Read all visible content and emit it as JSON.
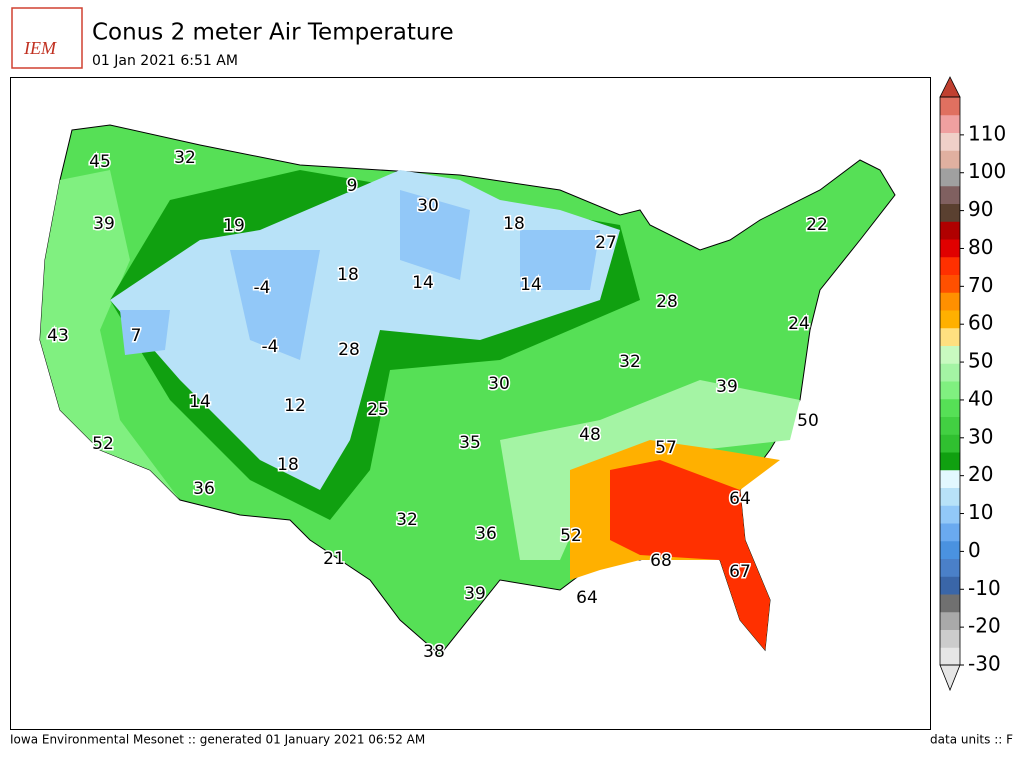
{
  "header": {
    "logo": "IEM",
    "title": "Conus 2 meter Air Temperature",
    "subtitle": "01 Jan 2021 6:51 AM"
  },
  "map": {
    "labels": [
      45,
      32,
      39,
      19,
      9,
      30,
      18,
      27,
      22,
      -4,
      18,
      14,
      14,
      28,
      24,
      43,
      7,
      -4,
      28,
      32,
      30,
      39,
      14,
      12,
      25,
      48,
      50,
      52,
      35,
      57,
      18,
      36,
      64,
      32,
      36,
      52,
      21,
      68,
      67,
      39,
      64,
      38
    ]
  },
  "colorbar": {
    "clim": [
      -30,
      120
    ],
    "ticks": [
      -30,
      -20,
      -10,
      0,
      10,
      20,
      30,
      40,
      50,
      60,
      70,
      80,
      90,
      100,
      110
    ],
    "colors": [
      "#e6e6e6",
      "#cccccc",
      "#a9a9a9",
      "#707070",
      "#3a66a8",
      "#4a80c8",
      "#4a92e0",
      "#6aaaf0",
      "#92c8f8",
      "#b8e2f8",
      "#e2f8ff",
      "#10a010",
      "#30c030",
      "#42d042",
      "#56e056",
      "#80f080",
      "#a4f4a4",
      "#c8fac0",
      "#ffe080",
      "#ffb000",
      "#ff9000",
      "#ff5000",
      "#ff3000",
      "#e00000",
      "#b00000",
      "#5a4030",
      "#806060",
      "#a0a0a0",
      "#e0b0a0",
      "#f0d0c8",
      "#f0a0a0",
      "#e07060"
    ],
    "under": "#e6e6e6",
    "over": "#c04030"
  },
  "footer": {
    "left": "Iowa Environmental Mesonet :: generated 01 January 2021 06:52 AM",
    "right": "data units :: F"
  }
}
